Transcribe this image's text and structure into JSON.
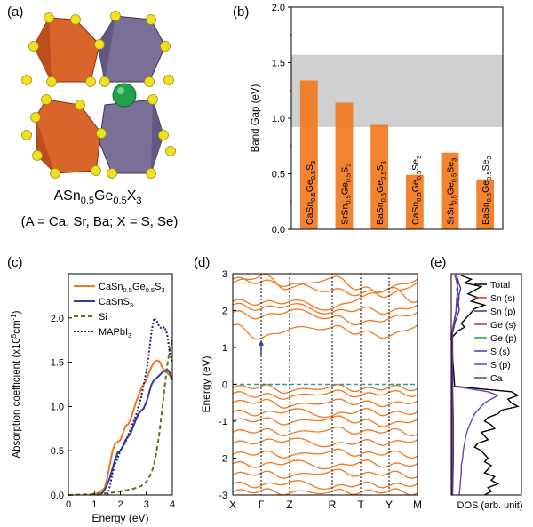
{
  "panels": {
    "a": {
      "label": "(a)",
      "formula": {
        "base": "ASn",
        "sub1": "0.5",
        "mid": "Ge",
        "sub2": "0.5",
        "end": "X",
        "sub3": "3"
      },
      "caption": "(A = Ca, Sr, Ba; X = S, Se)",
      "colors": {
        "octa_orange": "#d9652a",
        "octa_purple": "#7a6f97",
        "anion": "#f0e020",
        "cation": "#23a04a"
      }
    },
    "b": {
      "label": "(b)"
    },
    "c": {
      "label": "(c)"
    },
    "d": {
      "label": "(d)"
    },
    "e": {
      "label": "(e)"
    }
  },
  "chart_data": [
    {
      "id": "b",
      "type": "bar",
      "ylabel": "Band Gap (eV)",
      "ylim": [
        0,
        2.0
      ],
      "yticks": [
        "0.0",
        "0.5",
        "1.0",
        "1.5",
        "2.0"
      ],
      "categories": [
        {
          "parts": [
            "CaSn",
            "0.5",
            "Ge",
            "0.5",
            "S",
            "3"
          ]
        },
        {
          "parts": [
            "SrSn",
            "0.5",
            "Ge",
            "0.5",
            "S",
            "3"
          ]
        },
        {
          "parts": [
            "BaSn",
            "0.5",
            "Ge",
            "0.5",
            "S",
            "3"
          ]
        },
        {
          "parts": [
            "CaSn",
            "0.5",
            "Ge",
            "0.5",
            "Se",
            "3"
          ]
        },
        {
          "parts": [
            "SrSn",
            "0.5",
            "Ge",
            "0.5",
            "Se",
            "3"
          ]
        },
        {
          "parts": [
            "BaSn",
            "0.5",
            "Ge",
            "0.5",
            "Se",
            "3"
          ]
        }
      ],
      "values": [
        1.34,
        1.14,
        0.94,
        0.49,
        0.69,
        0.45
      ],
      "shaded_band": [
        0.92,
        1.57
      ],
      "bar_color": "#f07820",
      "band_color": "#c8c8c8"
    },
    {
      "id": "c",
      "type": "line",
      "xlabel": "Energy (eV)",
      "ylabel": {
        "main": "Absorption coefficient (x10",
        "sup": "5",
        "unit": "cm",
        "sup2": "-1",
        "close": ")"
      },
      "xlim": [
        0,
        4
      ],
      "ylim": [
        0,
        2.5
      ],
      "xticks": [
        "0",
        "1",
        "2",
        "3",
        "4"
      ],
      "yticks": [
        "0.0",
        "0.5",
        "1.0",
        "1.5",
        "2.0"
      ],
      "legend": [
        {
          "parts": [
            "CaSn",
            "0.5",
            "Ge",
            "0.5",
            "S",
            "3"
          ],
          "color": "#f07820",
          "style": "solid"
        },
        {
          "parts": [
            "CaSnS",
            "3"
          ],
          "color": "#2e3e9c",
          "style": "solid"
        },
        {
          "parts": [
            "Si"
          ],
          "color": "#6b6b1e",
          "style": "dashed"
        },
        {
          "parts": [
            "MAPbI",
            "3"
          ],
          "color": "#1c1c8c",
          "style": "dotted"
        }
      ],
      "series": [
        {
          "name": "CaSn0.5Ge0.5S3",
          "color": "#f07820",
          "style": "solid",
          "x": [
            0.8,
            1.0,
            1.2,
            1.4,
            1.5,
            1.6,
            1.7,
            1.8,
            1.9,
            2.0,
            2.1,
            2.2,
            2.3,
            2.4,
            2.5,
            2.6,
            2.7,
            2.8,
            2.9,
            3.0,
            3.1,
            3.2,
            3.3,
            3.4,
            3.5,
            3.6,
            3.7,
            3.8,
            3.9,
            4.0
          ],
          "y": [
            0.0,
            0.01,
            0.03,
            0.08,
            0.2,
            0.35,
            0.5,
            0.58,
            0.6,
            0.62,
            0.7,
            0.78,
            0.8,
            0.86,
            0.95,
            1.05,
            1.12,
            1.2,
            1.25,
            1.3,
            1.38,
            1.45,
            1.5,
            1.52,
            1.51,
            1.45,
            1.4,
            1.38,
            1.35,
            1.3
          ]
        },
        {
          "name": "CaSnS3",
          "color": "#2e3e9c",
          "style": "solid",
          "x": [
            1.1,
            1.3,
            1.4,
            1.5,
            1.6,
            1.7,
            1.8,
            1.9,
            2.0,
            2.1,
            2.2,
            2.3,
            2.4,
            2.5,
            2.6,
            2.7,
            2.8,
            2.9,
            3.0,
            3.1,
            3.2,
            3.3,
            3.4,
            3.5,
            3.6,
            3.7,
            3.8,
            3.9,
            4.0
          ],
          "y": [
            0.0,
            0.02,
            0.06,
            0.12,
            0.2,
            0.3,
            0.4,
            0.48,
            0.5,
            0.55,
            0.62,
            0.66,
            0.7,
            0.78,
            0.85,
            0.92,
            0.95,
            0.98,
            1.05,
            1.15,
            1.25,
            1.3,
            1.32,
            1.35,
            1.38,
            1.4,
            1.42,
            1.38,
            1.3
          ]
        },
        {
          "name": "Si",
          "color": "#6b6b1e",
          "style": "dashed",
          "x": [
            0.0,
            0.5,
            1.0,
            1.5,
            2.0,
            2.5,
            2.8,
            3.0,
            3.2,
            3.3,
            3.4,
            3.5,
            3.6,
            3.7,
            3.8,
            3.9,
            4.0
          ],
          "y": [
            0.0,
            0.005,
            0.01,
            0.02,
            0.04,
            0.07,
            0.1,
            0.15,
            0.25,
            0.35,
            0.5,
            0.7,
            0.95,
            1.2,
            1.45,
            1.65,
            1.75
          ]
        },
        {
          "name": "MAPbI3",
          "color": "#1c1c8c",
          "style": "dotted",
          "x": [
            1.5,
            1.6,
            1.7,
            1.8,
            1.9,
            2.0,
            2.2,
            2.4,
            2.6,
            2.8,
            3.0,
            3.1,
            3.2,
            3.3,
            3.4,
            3.5,
            3.6,
            3.7,
            3.8,
            3.9,
            4.0
          ],
          "y": [
            0.0,
            0.1,
            0.25,
            0.35,
            0.42,
            0.5,
            0.6,
            0.75,
            0.9,
            1.1,
            1.4,
            1.6,
            1.85,
            2.0,
            1.97,
            1.9,
            1.88,
            1.9,
            1.82,
            1.6,
            1.5
          ]
        }
      ]
    },
    {
      "id": "d",
      "type": "line",
      "ylabel": "Energy (eV)",
      "ylim": [
        -3,
        3
      ],
      "yticks": [
        "-3",
        "-2",
        "-1",
        "0",
        "1",
        "2",
        "3"
      ],
      "kpoints": [
        "X",
        "Γ",
        "Z",
        "R",
        "T",
        "Y",
        "M"
      ],
      "kpositions": [
        0,
        1,
        2,
        3.5,
        4.5,
        5.5,
        6.5
      ],
      "fermi_level": 0,
      "line_color": "#f07820",
      "fermi_color": "#2a9aa0",
      "arrow": {
        "x": 1,
        "from": 0.8,
        "to": 1.2,
        "color": "#2e3e9c"
      },
      "conduction_bands": [
        [
          2.85,
          2.78,
          2.7,
          2.55,
          2.45,
          2.6,
          2.85
        ],
        [
          2.75,
          2.95,
          2.6,
          2.9,
          2.6,
          2.4,
          2.75
        ],
        [
          2.25,
          2.2,
          2.25,
          2.05,
          2.35,
          2.6,
          2.25
        ],
        [
          2.15,
          2.05,
          2.15,
          1.95,
          2.05,
          1.95,
          2.15
        ],
        [
          1.95,
          1.82,
          2.0,
          1.82,
          1.65,
          1.78,
          1.95
        ],
        [
          1.6,
          1.25,
          1.5,
          1.55,
          1.4,
          1.3,
          1.6
        ]
      ],
      "valence_bands": [
        [
          -0.1,
          -0.05,
          -0.2,
          -0.05,
          -0.15,
          -0.08,
          -0.12
        ],
        [
          -0.25,
          -0.3,
          -0.35,
          -0.2,
          -0.3,
          -0.22,
          -0.28
        ],
        [
          -0.5,
          -0.45,
          -0.6,
          -0.45,
          -0.5,
          -0.55,
          -0.45
        ],
        [
          -0.75,
          -0.8,
          -0.7,
          -0.85,
          -0.7,
          -0.8,
          -0.75
        ],
        [
          -1.0,
          -0.95,
          -1.05,
          -0.9,
          -1.0,
          -1.1,
          -0.95
        ],
        [
          -1.3,
          -1.25,
          -1.35,
          -1.2,
          -1.3,
          -1.25,
          -1.35
        ],
        [
          -1.6,
          -1.55,
          -1.5,
          -1.65,
          -1.55,
          -1.6,
          -1.5
        ],
        [
          -1.9,
          -1.85,
          -1.95,
          -1.8,
          -1.9,
          -1.85,
          -1.95
        ],
        [
          -2.15,
          -2.2,
          -2.1,
          -2.25,
          -2.1,
          -2.2,
          -2.15
        ],
        [
          -2.45,
          -2.4,
          -2.5,
          -2.35,
          -2.45,
          -2.4,
          -2.5
        ],
        [
          -2.7,
          -2.75,
          -2.65,
          -2.8,
          -2.7,
          -2.75,
          -2.7
        ],
        [
          -2.92,
          -2.88,
          -2.95,
          -2.9,
          -2.93,
          -2.88,
          -2.95
        ]
      ]
    },
    {
      "id": "e",
      "type": "line",
      "xlabel": "DOS (arb. unit)",
      "ylim": [
        -3,
        3
      ],
      "legend": [
        {
          "name": "Total",
          "color": "#000000"
        },
        {
          "name": "Sn (s)",
          "color": "#e0302a"
        },
        {
          "name": "Sn (p)",
          "color": "#2e3e9c"
        },
        {
          "name": "Ge (s)",
          "color": "#c03030"
        },
        {
          "name": "Ge (p)",
          "color": "#2a9a3a"
        },
        {
          "name": "S (s)",
          "color": "#3a3ab0"
        },
        {
          "name": "S (p)",
          "color": "#7040b0"
        },
        {
          "name": "Ca",
          "color": "#8a2a8a"
        }
      ],
      "series": [
        {
          "name": "Total",
          "color": "#000000",
          "y": [
            2.95,
            2.85,
            2.75,
            2.65,
            2.55,
            2.45,
            2.35,
            2.25,
            2.15,
            2.05,
            1.95,
            1.85,
            1.75,
            1.65,
            1.55,
            1.45,
            1.35,
            1.25,
            -0.05,
            -0.1,
            -0.2,
            -0.3,
            -0.4,
            -0.5,
            -0.6,
            -0.7,
            -0.8,
            -0.9,
            -1.0,
            -1.1,
            -1.2,
            -1.3,
            -1.4,
            -1.5,
            -1.6,
            -1.7,
            -1.8,
            -1.9,
            -2.0,
            -2.1,
            -2.2,
            -2.3,
            -2.4,
            -2.5,
            -2.6,
            -2.7,
            -2.8,
            -2.9,
            -3.0
          ],
          "v": [
            0.15,
            0.3,
            0.2,
            0.45,
            0.35,
            0.25,
            0.4,
            0.3,
            0.5,
            0.35,
            0.3,
            0.25,
            0.2,
            0.15,
            0.2,
            0.1,
            0.05,
            0.0,
            0.05,
            0.3,
            0.9,
            1.0,
            0.85,
            0.9,
            1.0,
            0.75,
            0.7,
            0.55,
            0.5,
            0.6,
            0.65,
            0.45,
            0.5,
            0.55,
            0.4,
            0.35,
            0.45,
            0.5,
            0.55,
            0.5,
            0.6,
            0.55,
            0.5,
            0.65,
            0.6,
            0.7,
            0.55,
            0.6,
            0.5
          ]
        },
        {
          "name": "S (p)",
          "color": "#7040b0",
          "y": [
            2.95,
            2.75,
            2.55,
            2.35,
            2.15,
            1.95,
            1.75,
            1.55,
            1.35,
            -0.05,
            -0.1,
            -0.2,
            -0.3,
            -0.4,
            -0.5,
            -0.6,
            -0.8,
            -1.0,
            -1.2,
            -1.4,
            -1.6,
            -1.8,
            -2.0,
            -2.2,
            -2.4,
            -2.6,
            -2.8,
            -3.0
          ],
          "v": [
            0.05,
            0.1,
            0.08,
            0.12,
            0.1,
            0.07,
            0.05,
            0.04,
            0.0,
            0.02,
            0.2,
            0.55,
            0.7,
            0.6,
            0.5,
            0.45,
            0.35,
            0.3,
            0.25,
            0.22,
            0.2,
            0.18,
            0.17,
            0.15,
            0.15,
            0.14,
            0.13,
            0.12
          ]
        },
        {
          "name": "Sn (p)",
          "color": "#2e3e9c",
          "y": [
            2.95,
            2.6,
            2.3,
            2.0,
            1.7,
            1.4,
            -0.1,
            -1.0,
            -2.0,
            -3.0
          ],
          "v": [
            0.08,
            0.14,
            0.1,
            0.12,
            0.06,
            0.02,
            0.02,
            0.03,
            0.03,
            0.02
          ]
        },
        {
          "name": "Ca",
          "color": "#8a2a8a",
          "y": [
            2.95,
            2.6,
            2.3,
            2.0,
            1.7,
            1.4,
            -0.1,
            -3.0
          ],
          "v": [
            0.06,
            0.1,
            0.08,
            0.07,
            0.04,
            0.01,
            0.01,
            0.01
          ]
        }
      ]
    }
  ]
}
